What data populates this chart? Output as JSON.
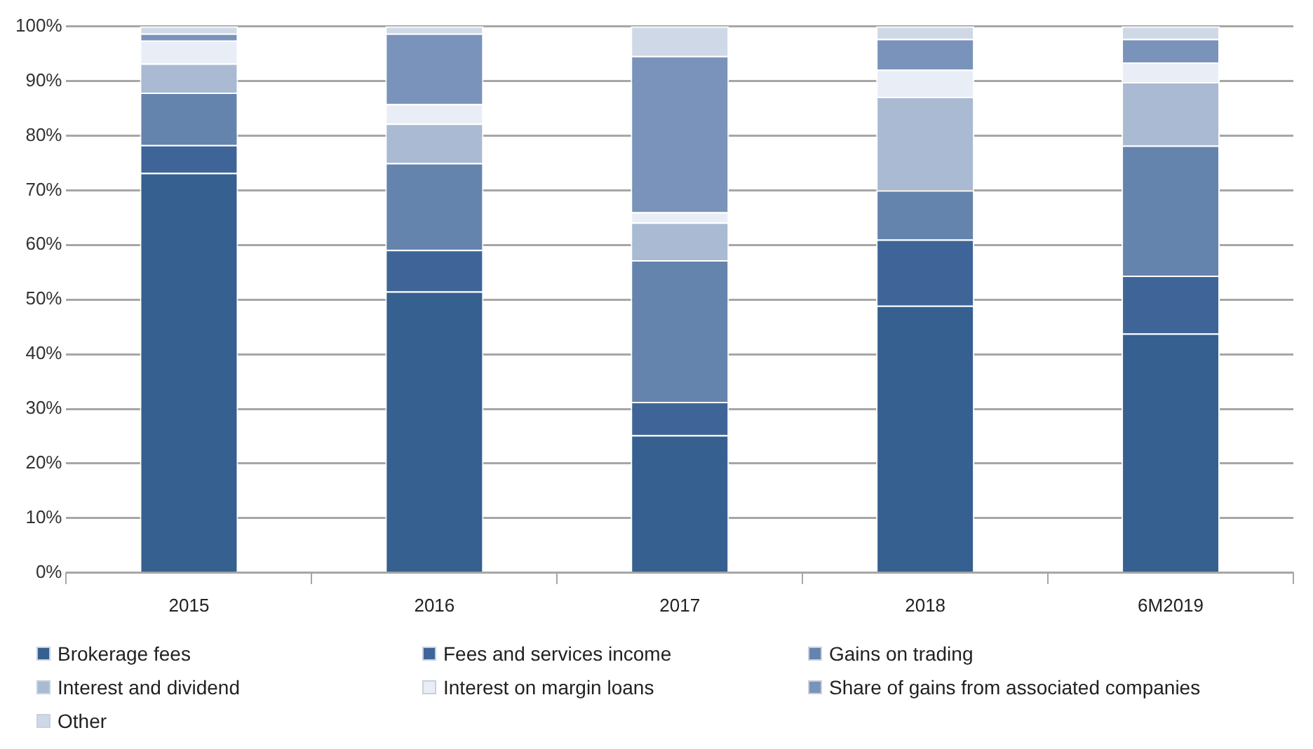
{
  "chart_data": {
    "type": "bar",
    "stacked": true,
    "categories": [
      "2015",
      "2016",
      "2017",
      "2018",
      "6M2019"
    ],
    "series": [
      {
        "name": "Brokerage fees",
        "color": "#35608f",
        "values": [
          73.2,
          51.5,
          25.2,
          48.9,
          43.8
        ]
      },
      {
        "name": "Fees and services income",
        "color": "#3f6598",
        "values": [
          5.1,
          7.6,
          6.1,
          12.1,
          10.6
        ]
      },
      {
        "name": "Gains on trading",
        "color": "#6584ad",
        "values": [
          9.6,
          15.9,
          25.9,
          9.0,
          23.8
        ]
      },
      {
        "name": "Interest and dividend",
        "color": "#a9bad2",
        "values": [
          5.3,
          7.2,
          6.9,
          17.1,
          11.6
        ]
      },
      {
        "name": "Interest on margin loans",
        "color": "#e9eef6",
        "values": [
          4.2,
          3.6,
          1.9,
          5.0,
          3.6
        ]
      },
      {
        "name": "Share of gains from associated companies",
        "color": "#7a93ba",
        "values": [
          1.3,
          12.9,
          28.6,
          5.6,
          4.3
        ]
      },
      {
        "name": "Other",
        "color": "#cfd8e7",
        "values": [
          1.3,
          1.3,
          5.4,
          2.3,
          2.3
        ]
      }
    ],
    "ylim": [
      0,
      100
    ],
    "yticks": [
      {
        "value": 0,
        "label": "0%"
      },
      {
        "value": 10,
        "label": "10%"
      },
      {
        "value": 20,
        "label": "20%"
      },
      {
        "value": 30,
        "label": "30%"
      },
      {
        "value": 40,
        "label": "40%"
      },
      {
        "value": 50,
        "label": "50%"
      },
      {
        "value": 60,
        "label": "60%"
      },
      {
        "value": 70,
        "label": "70%"
      },
      {
        "value": 80,
        "label": "80%"
      },
      {
        "value": 90,
        "label": "90%"
      },
      {
        "value": 100,
        "label": "100%"
      }
    ],
    "grid": "y",
    "legend": "bottom"
  }
}
